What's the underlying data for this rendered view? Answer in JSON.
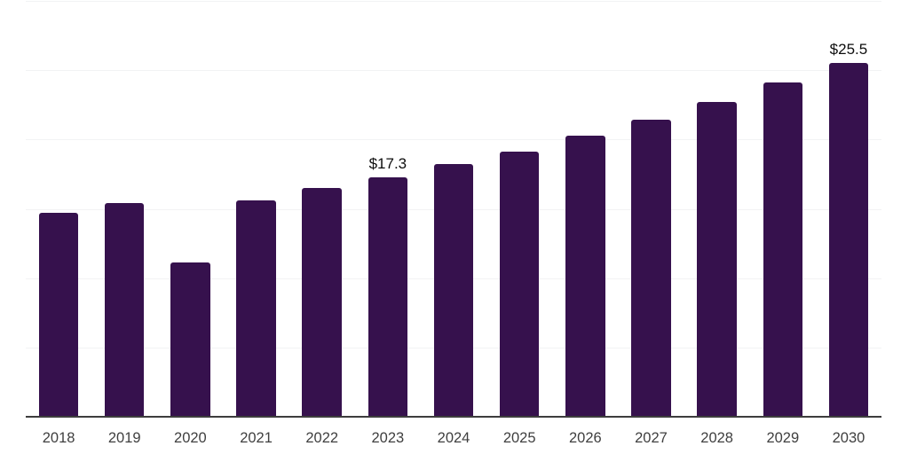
{
  "chart_data": {
    "type": "bar",
    "title": "",
    "xlabel": "",
    "ylabel": "",
    "categories": [
      "2018",
      "2019",
      "2020",
      "2021",
      "2022",
      "2023",
      "2024",
      "2025",
      "2026",
      "2027",
      "2028",
      "2029",
      "2030"
    ],
    "values": [
      14.7,
      15.4,
      11.1,
      15.6,
      16.5,
      17.3,
      18.2,
      19.1,
      20.3,
      21.4,
      22.7,
      24.1,
      25.5
    ],
    "point_labels": [
      "",
      "",
      "",
      "",
      "",
      "$17.3",
      "",
      "",
      "",
      "",
      "",
      "",
      "$25.5"
    ],
    "ylim": [
      0,
      30
    ],
    "gridline_step": 5,
    "grid": true,
    "legend": false,
    "y_tick_labels_shown": false
  },
  "colors": {
    "bar": "#36114d",
    "grid": "#f2f3f4",
    "axis": "#3d3d3d",
    "tick_label": "#3f3f3f",
    "value_label": "#0d0d0d",
    "background": "#ffffff"
  }
}
